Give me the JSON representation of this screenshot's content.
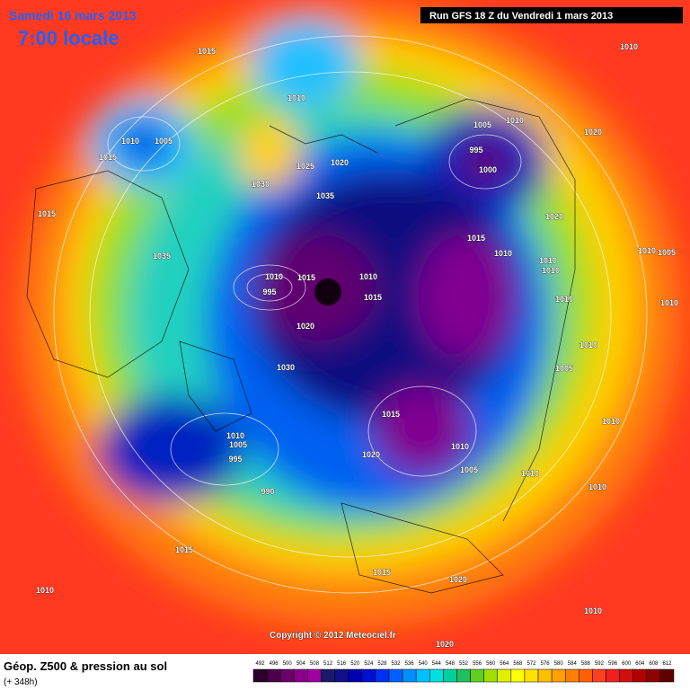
{
  "header": {
    "date": "Samedi 16 mars 2013",
    "time": "7:00 locale",
    "run": "Run GFS 18 Z du Vendredi 1 mars 2013"
  },
  "copyright": "Copyright © 2012 Meteociel.fr",
  "footer": {
    "title": "Géop. Z500 & pression au sol",
    "lead": "(+ 348h)"
  },
  "isobar_labels": [
    "1015",
    "1010",
    "1010",
    "1005",
    "1015",
    "1005",
    "1010",
    "1020",
    "995",
    "1000",
    "1030",
    "1025",
    "1020",
    "1035",
    "1015",
    "1020",
    "1015",
    "1010",
    "1035",
    "1010",
    "1005",
    "1010",
    "1010",
    "1010",
    "1015",
    "1010",
    "1015",
    "995",
    "1010",
    "1010",
    "1020",
    "1010",
    "1005",
    "1030",
    "1015",
    "1010",
    "1010",
    "1020",
    "1005",
    "1010",
    "1010",
    "1010",
    "1005",
    "995",
    "990",
    "1015",
    "1010",
    "1015",
    "1020",
    "1010",
    "1020",
    "1010"
  ],
  "legend": {
    "levels": [
      492,
      496,
      500,
      504,
      508,
      512,
      516,
      520,
      524,
      528,
      532,
      536,
      540,
      544,
      548,
      552,
      556,
      560,
      564,
      568,
      572,
      576,
      580,
      584,
      588,
      592,
      596,
      600,
      604,
      608,
      612
    ],
    "colors": [
      "#2a002a",
      "#4a004a",
      "#6a006a",
      "#8a008a",
      "#a000a0",
      "#1a1a6a",
      "#10108a",
      "#0000b0",
      "#0010d0",
      "#0030f0",
      "#0060ff",
      "#0090ff",
      "#00c0ff",
      "#00e0e0",
      "#00d0a0",
      "#20c060",
      "#60d020",
      "#a0e000",
      "#e0f000",
      "#ffff00",
      "#ffe000",
      "#ffc000",
      "#ffa000",
      "#ff8000",
      "#ff6000",
      "#ff4020",
      "#f02020",
      "#d01010",
      "#b00000",
      "#900000",
      "#600000"
    ]
  }
}
